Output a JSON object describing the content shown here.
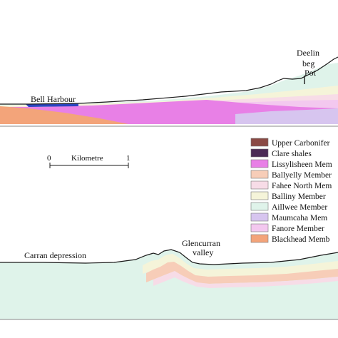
{
  "colors": {
    "upper_carboniferous": "#8a4a45",
    "clare_shales": "#4a2a55",
    "lissylisheen": "#e880e6",
    "ballyelly": "#f7cdb8",
    "fahee_north": "#f7dce7",
    "balliny": "#f5f4d9",
    "aillwee": "#dff3ea",
    "maumcaha": "#d7c5ef",
    "fanore": "#f3c8ef",
    "blackhead": "#f3a47a",
    "sea": "#2a44c0",
    "outline": "#1a1a1a",
    "separator": "#888888"
  },
  "top_section": {
    "labels": {
      "bell_harbour": "Bell Harbour",
      "deelin_line1": "Deelin",
      "deelin_line2": "beg",
      "deelin_line3": "Pot"
    }
  },
  "bottom_section": {
    "labels": {
      "carran": "Carran depression",
      "glencurran_line1": "Glencurran",
      "glencurran_line2": "valley"
    }
  },
  "scale_bar": {
    "start": "0",
    "label": "Kilometre",
    "end": "1"
  },
  "legend": [
    {
      "key": "upper_carboniferous",
      "label": "Upper Carbonifer"
    },
    {
      "key": "clare_shales",
      "label": "Clare shales"
    },
    {
      "key": "lissylisheen",
      "label": "Lissylisheen Mem"
    },
    {
      "key": "ballyelly",
      "label": "Ballyelly Member"
    },
    {
      "key": "fahee_north",
      "label": "Fahee North Mem"
    },
    {
      "key": "balliny",
      "label": "Balliny Member"
    },
    {
      "key": "aillwee",
      "label": "Aillwee Member"
    },
    {
      "key": "maumcaha",
      "label": "Maumcaha Mem"
    },
    {
      "key": "fanore",
      "label": "Fanore Member"
    },
    {
      "key": "blackhead",
      "label": "Blackhead Memb"
    }
  ]
}
